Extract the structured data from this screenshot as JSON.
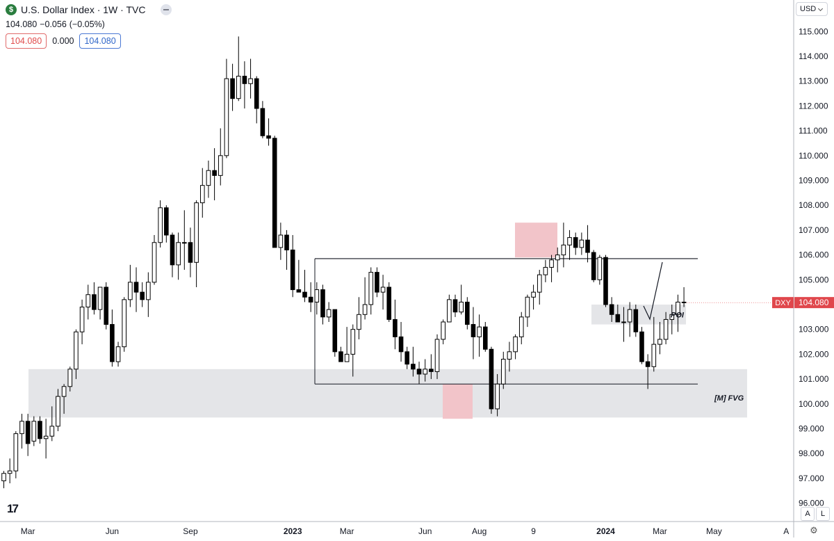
{
  "header": {
    "title": "U.S. Dollar Index · 1W · TVC",
    "last": "104.080",
    "change": "−0.056",
    "change_pct": "(−0.05%)",
    "bid": "104.080",
    "spread": "0.000",
    "ask": "104.080",
    "currency": "USD",
    "logo_glyph": "$"
  },
  "controls": {
    "auto_label": "A",
    "log_label": "L",
    "tv_logo": "17"
  },
  "colors": {
    "bull_fill": "#ffffff",
    "bear_fill": "#000000",
    "zone_grey": "#e4e5e8",
    "zone_red": "#f2c4c9",
    "price_tag": "#e0474c"
  },
  "chart_data": {
    "type": "candlestick",
    "symbol": "DXY",
    "last_price": "104.080",
    "ylim": [
      96.0,
      115.8
    ],
    "y_ticks": [
      "115.000",
      "114.000",
      "113.000",
      "112.000",
      "111.000",
      "110.000",
      "109.000",
      "108.000",
      "107.000",
      "106.000",
      "105.000",
      "104.000",
      "103.000",
      "102.000",
      "101.000",
      "100.000",
      "99.000",
      "98.000",
      "97.000",
      "96.000"
    ],
    "x_ticks": [
      {
        "label": "Mar",
        "bar": 4,
        "bold": false
      },
      {
        "label": "Jun",
        "bar": 18,
        "bold": false
      },
      {
        "label": "Sep",
        "bar": 31,
        "bold": false
      },
      {
        "label": "2023",
        "bar": 48,
        "bold": true
      },
      {
        "label": "Mar",
        "bar": 57,
        "bold": false
      },
      {
        "label": "Jun",
        "bar": 70,
        "bold": false
      },
      {
        "label": "Aug",
        "bar": 79,
        "bold": false
      },
      {
        "label": "9",
        "bar": 88,
        "bold": false
      },
      {
        "label": "2024",
        "bar": 100,
        "bold": true
      },
      {
        "label": "Mar",
        "bar": 109,
        "bold": false
      },
      {
        "label": "May",
        "bar": 118,
        "bold": false
      },
      {
        "label": "A",
        "bar": 130,
        "bold": false
      }
    ],
    "candles": [
      [
        96.9,
        97.3,
        96.6,
        97.2
      ],
      [
        97.2,
        97.8,
        96.8,
        97.3
      ],
      [
        97.3,
        98.9,
        97.0,
        98.8
      ],
      [
        98.8,
        99.6,
        98.2,
        99.3
      ],
      [
        99.3,
        99.6,
        97.9,
        98.4
      ],
      [
        98.5,
        99.5,
        98.3,
        99.3
      ],
      [
        99.3,
        99.5,
        98.4,
        98.6
      ],
      [
        98.6,
        99.4,
        97.8,
        98.7
      ],
      [
        98.7,
        99.9,
        98.5,
        99.1
      ],
      [
        99.1,
        100.6,
        98.9,
        100.3
      ],
      [
        100.3,
        100.8,
        99.6,
        100.7
      ],
      [
        100.7,
        101.5,
        100.5,
        101.4
      ],
      [
        101.4,
        103.0,
        101.0,
        102.9
      ],
      [
        102.9,
        104.2,
        102.4,
        103.9
      ],
      [
        103.9,
        104.8,
        103.4,
        104.4
      ],
      [
        104.4,
        104.9,
        103.6,
        103.8
      ],
      [
        103.8,
        104.6,
        103.4,
        104.7
      ],
      [
        104.7,
        104.9,
        103.0,
        103.2
      ],
      [
        103.2,
        103.8,
        101.5,
        101.7
      ],
      [
        101.7,
        102.5,
        101.5,
        102.3
      ],
      [
        102.3,
        104.3,
        102.1,
        104.2
      ],
      [
        104.2,
        105.6,
        103.9,
        104.9
      ],
      [
        104.9,
        105.5,
        103.7,
        104.5
      ],
      [
        104.5,
        104.9,
        103.9,
        104.2
      ],
      [
        104.2,
        105.3,
        103.5,
        104.9
      ],
      [
        104.9,
        106.8,
        104.8,
        106.5
      ],
      [
        106.5,
        108.2,
        106.3,
        107.9
      ],
      [
        107.9,
        108.0,
        106.5,
        106.8
      ],
      [
        106.8,
        106.9,
        105.1,
        105.6
      ],
      [
        105.6,
        106.9,
        105.0,
        106.5
      ],
      [
        106.5,
        107.8,
        105.4,
        106.5
      ],
      [
        106.5,
        107.1,
        105.1,
        105.7
      ],
      [
        105.7,
        108.2,
        104.7,
        108.1
      ],
      [
        108.1,
        109.5,
        107.5,
        108.8
      ],
      [
        108.8,
        109.8,
        108.3,
        109.4
      ],
      [
        109.4,
        110.3,
        108.2,
        109.2
      ],
      [
        109.2,
        111.1,
        108.8,
        110.0
      ],
      [
        110.0,
        113.9,
        109.9,
        113.1
      ],
      [
        113.1,
        113.7,
        111.8,
        112.3
      ],
      [
        112.3,
        114.8,
        112.2,
        113.2
      ],
      [
        113.2,
        113.8,
        111.9,
        112.9
      ],
      [
        112.9,
        113.9,
        112.3,
        113.1
      ],
      [
        113.1,
        113.2,
        111.3,
        111.9
      ],
      [
        111.9,
        112.2,
        110.7,
        110.8
      ],
      [
        110.8,
        111.5,
        110.4,
        110.7
      ],
      [
        110.7,
        110.8,
        106.3,
        106.3
      ],
      [
        106.3,
        107.3,
        105.8,
        106.8
      ],
      [
        106.8,
        107.0,
        105.4,
        106.2
      ],
      [
        106.2,
        106.8,
        104.3,
        104.6
      ],
      [
        104.6,
        105.8,
        104.5,
        104.5
      ],
      [
        104.5,
        105.4,
        104.1,
        104.3
      ],
      [
        104.3,
        104.9,
        103.7,
        104.1
      ],
      [
        104.1,
        104.9,
        103.6,
        104.6
      ],
      [
        104.6,
        104.8,
        103.2,
        103.5
      ],
      [
        103.5,
        104.1,
        103.3,
        103.8
      ],
      [
        103.8,
        103.8,
        101.9,
        102.1
      ],
      [
        102.1,
        102.3,
        101.7,
        101.7
      ],
      [
        101.7,
        103.1,
        101.8,
        102.0
      ],
      [
        102.0,
        103.2,
        101.1,
        103.0
      ],
      [
        103.0,
        104.3,
        102.6,
        103.6
      ],
      [
        103.6,
        105.1,
        103.4,
        104.0
      ],
      [
        104.0,
        105.5,
        103.6,
        105.3
      ],
      [
        105.3,
        105.5,
        104.3,
        104.5
      ],
      [
        104.5,
        105.2,
        103.8,
        104.7
      ],
      [
        104.7,
        104.9,
        103.3,
        103.4
      ],
      [
        103.4,
        104.2,
        102.2,
        102.7
      ],
      [
        102.7,
        103.3,
        101.7,
        102.1
      ],
      [
        102.1,
        102.3,
        101.4,
        101.6
      ],
      [
        101.6,
        102.3,
        101.1,
        101.4
      ],
      [
        101.4,
        101.7,
        100.8,
        101.2
      ],
      [
        101.2,
        101.8,
        100.9,
        101.4
      ],
      [
        101.4,
        102.0,
        101.0,
        101.3
      ],
      [
        101.3,
        102.8,
        101.0,
        102.6
      ],
      [
        102.6,
        103.4,
        102.4,
        103.3
      ],
      [
        103.3,
        104.4,
        103.3,
        104.2
      ],
      [
        104.2,
        104.4,
        103.5,
        103.7
      ],
      [
        103.7,
        104.8,
        103.6,
        104.1
      ],
      [
        104.1,
        104.3,
        103.0,
        103.2
      ],
      [
        103.2,
        103.9,
        101.8,
        102.7
      ],
      [
        102.7,
        103.6,
        101.9,
        103.1
      ],
      [
        103.1,
        103.3,
        102.1,
        102.2
      ],
      [
        102.2,
        102.3,
        99.6,
        99.8
      ],
      [
        99.8,
        101.2,
        99.5,
        100.8
      ],
      [
        100.8,
        102.1,
        100.6,
        101.8
      ],
      [
        101.8,
        102.5,
        101.3,
        102.1
      ],
      [
        102.1,
        102.8,
        101.8,
        102.7
      ],
      [
        102.7,
        103.7,
        102.4,
        103.5
      ],
      [
        103.5,
        104.4,
        103.1,
        104.3
      ],
      [
        104.3,
        104.8,
        103.8,
        104.5
      ],
      [
        104.5,
        105.4,
        104.0,
        105.2
      ],
      [
        105.2,
        105.8,
        104.9,
        105.5
      ],
      [
        105.5,
        106.0,
        104.9,
        105.8
      ],
      [
        105.8,
        106.3,
        105.3,
        106.0
      ],
      [
        106.0,
        107.3,
        105.5,
        106.4
      ],
      [
        106.4,
        107.0,
        105.8,
        106.7
      ],
      [
        106.7,
        106.9,
        106.0,
        106.3
      ],
      [
        106.3,
        106.9,
        106.0,
        106.6
      ],
      [
        106.6,
        107.2,
        105.7,
        106.1
      ],
      [
        106.1,
        106.2,
        104.9,
        105.0
      ],
      [
        105.0,
        106.0,
        104.8,
        105.9
      ],
      [
        105.9,
        106.0,
        103.9,
        104.0
      ],
      [
        104.0,
        104.3,
        103.3,
        103.6
      ],
      [
        103.6,
        104.0,
        103.3,
        103.3
      ],
      [
        103.3,
        103.9,
        102.5,
        103.3
      ],
      [
        103.3,
        104.1,
        102.7,
        103.8
      ],
      [
        103.8,
        104.0,
        102.7,
        102.9
      ],
      [
        102.9,
        103.1,
        101.6,
        101.7
      ],
      [
        101.7,
        102.0,
        100.6,
        101.5
      ],
      [
        101.5,
        103.5,
        101.3,
        102.4
      ],
      [
        102.4,
        103.3,
        102.0,
        102.6
      ],
      [
        102.6,
        103.7,
        102.4,
        103.4
      ],
      [
        103.4,
        104.0,
        102.8,
        103.6
      ],
      [
        103.6,
        104.4,
        102.9,
        104.1
      ],
      [
        104.1,
        104.7,
        103.9,
        104.08
      ]
    ],
    "annotations": [
      {
        "label": "POI"
      },
      {
        "label": "[M] FVG"
      }
    ]
  }
}
